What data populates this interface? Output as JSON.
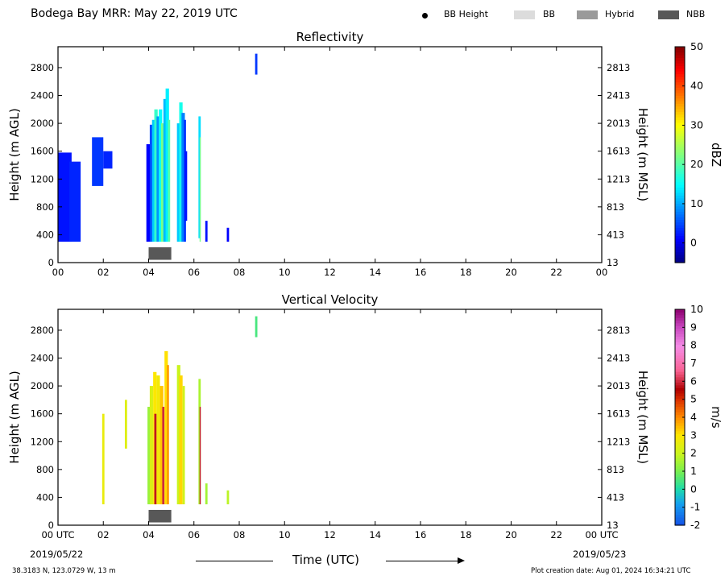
{
  "header": {
    "title": "Bodega Bay MRR:  May 22, 2019 UTC",
    "legend": [
      {
        "label": "BB Height",
        "kind": "dot",
        "color": "#000000"
      },
      {
        "label": "BB",
        "kind": "swatch",
        "color": "#dcdcdc"
      },
      {
        "label": "Hybrid",
        "kind": "swatch",
        "color": "#9a9a9a"
      },
      {
        "label": "NBB",
        "kind": "swatch",
        "color": "#585858"
      }
    ]
  },
  "footer": {
    "location": "38.3183 N, 123.0729 W, 13 m",
    "created": "Plot creation date: Aug 01, 2024 16:34:21 UTC",
    "xlabel": "Time (UTC)",
    "start_date": "2019/05/22",
    "end_date": "2019/05/23"
  },
  "chart_data": [
    {
      "type": "heatmap",
      "title": "Reflectivity",
      "xlabel": "",
      "ylabel": "Height (m AGL)",
      "ylabel_right": "Height (m MSL)",
      "x_ticks": [
        "00",
        "02",
        "04",
        "06",
        "08",
        "10",
        "12",
        "14",
        "16",
        "18",
        "20",
        "22",
        "00"
      ],
      "xlim": [
        0,
        24
      ],
      "ylim": [
        0,
        3100
      ],
      "y_ticks": [
        0,
        400,
        800,
        1200,
        1600,
        2000,
        2400,
        2800
      ],
      "y_ticks_right": [
        "13",
        "413",
        "813",
        "1213",
        "1613",
        "2013",
        "2413",
        "2813"
      ],
      "colorbar": {
        "label": "dBZ",
        "min": -5,
        "max": 50,
        "ticks": [
          0,
          10,
          20,
          30,
          40,
          50
        ]
      },
      "bands": [
        {
          "t": [
            0,
            0.6
          ],
          "h": [
            300,
            1580
          ],
          "v": 2
        },
        {
          "t": [
            0.5,
            1.0
          ],
          "h": [
            300,
            1450
          ],
          "v": 3
        },
        {
          "t": [
            1.5,
            2.0
          ],
          "h": [
            1100,
            1800
          ],
          "v": 4
        },
        {
          "t": [
            2.0,
            2.4
          ],
          "h": [
            1350,
            1600
          ],
          "v": 3
        },
        {
          "t": [
            3.9,
            4.1
          ],
          "h": [
            300,
            1700
          ],
          "v": 1
        },
        {
          "t": [
            4.05,
            4.2
          ],
          "h": [
            300,
            1980
          ],
          "v": 5
        },
        {
          "t": [
            4.15,
            4.3
          ],
          "h": [
            300,
            2050
          ],
          "v": 12
        },
        {
          "t": [
            4.25,
            4.4
          ],
          "h": [
            300,
            2200
          ],
          "v": 18
        },
        {
          "t": [
            4.35,
            4.5
          ],
          "h": [
            300,
            2100
          ],
          "v": 9
        },
        {
          "t": [
            4.45,
            4.6
          ],
          "h": [
            300,
            2200
          ],
          "v": 15
        },
        {
          "t": [
            4.55,
            4.7
          ],
          "h": [
            300,
            2000
          ],
          "v": 22
        },
        {
          "t": [
            4.65,
            4.8
          ],
          "h": [
            300,
            2350
          ],
          "v": 11
        },
        {
          "t": [
            4.75,
            4.9
          ],
          "h": [
            300,
            2500
          ],
          "v": 14
        },
        {
          "t": [
            4.85,
            4.95
          ],
          "h": [
            300,
            2050
          ],
          "v": 20
        },
        {
          "t": [
            5.25,
            5.4
          ],
          "h": [
            300,
            2000
          ],
          "v": 12
        },
        {
          "t": [
            5.35,
            5.5
          ],
          "h": [
            300,
            2300
          ],
          "v": 16
        },
        {
          "t": [
            5.45,
            5.6
          ],
          "h": [
            300,
            2150
          ],
          "v": 8
        },
        {
          "t": [
            5.55,
            5.65
          ],
          "h": [
            300,
            2050
          ],
          "v": 4
        },
        {
          "t": [
            5.6,
            5.7
          ],
          "h": [
            600,
            1600
          ],
          "v": 2
        },
        {
          "t": [
            6.2,
            6.3
          ],
          "h": [
            350,
            2100
          ],
          "v": 13
        },
        {
          "t": [
            6.25,
            6.3
          ],
          "h": [
            300,
            1800
          ],
          "v": 22
        },
        {
          "t": [
            6.5,
            6.6
          ],
          "h": [
            300,
            600
          ],
          "v": 2
        },
        {
          "t": [
            7.45,
            7.55
          ],
          "h": [
            300,
            500
          ],
          "v": 1
        },
        {
          "t": [
            8.7,
            8.8
          ],
          "h": [
            2700,
            3000
          ],
          "v": 4
        }
      ]
    },
    {
      "type": "heatmap",
      "title": "Vertical Velocity",
      "xlabel": "",
      "ylabel": "Height (m AGL)",
      "ylabel_right": "Height (m MSL)",
      "x_ticks": [
        "00 UTC",
        "02",
        "04",
        "06",
        "08",
        "10",
        "12",
        "14",
        "16",
        "18",
        "20",
        "22",
        "00 UTC"
      ],
      "xlim": [
        0,
        24
      ],
      "ylim": [
        0,
        3100
      ],
      "y_ticks": [
        0,
        400,
        800,
        1200,
        1600,
        2000,
        2400,
        2800
      ],
      "y_ticks_right": [
        "13",
        "413",
        "813",
        "1213",
        "1613",
        "2013",
        "2413",
        "2813"
      ],
      "colorbar": {
        "label": "m/s",
        "min": -2,
        "max": 10,
        "ticks": [
          -2,
          -1,
          0,
          1,
          2,
          3,
          4,
          5,
          6,
          7,
          8,
          9,
          10
        ]
      },
      "bands": [
        {
          "t": [
            1.95,
            2.05
          ],
          "h": [
            300,
            1600
          ],
          "v": 2.6
        },
        {
          "t": [
            2.95,
            3.05
          ],
          "h": [
            1100,
            1800
          ],
          "v": 2.4
        },
        {
          "t": [
            3.95,
            4.1
          ],
          "h": [
            300,
            1700
          ],
          "v": 1.4
        },
        {
          "t": [
            4.05,
            4.2
          ],
          "h": [
            300,
            2000
          ],
          "v": 2.3
        },
        {
          "t": [
            4.2,
            4.35
          ],
          "h": [
            300,
            2200
          ],
          "v": 3.0
        },
        {
          "t": [
            4.25,
            4.35
          ],
          "h": [
            300,
            1600
          ],
          "v": 5.8
        },
        {
          "t": [
            4.35,
            4.5
          ],
          "h": [
            300,
            2150
          ],
          "v": 2.8
        },
        {
          "t": [
            4.5,
            4.65
          ],
          "h": [
            300,
            2000
          ],
          "v": 3.4
        },
        {
          "t": [
            4.6,
            4.7
          ],
          "h": [
            300,
            1700
          ],
          "v": 6.0
        },
        {
          "t": [
            4.7,
            4.85
          ],
          "h": [
            300,
            2500
          ],
          "v": 3.1
        },
        {
          "t": [
            4.8,
            4.9
          ],
          "h": [
            300,
            2300
          ],
          "v": 3.8
        },
        {
          "t": [
            5.25,
            5.4
          ],
          "h": [
            300,
            2300
          ],
          "v": 2.0
        },
        {
          "t": [
            5.35,
            5.5
          ],
          "h": [
            300,
            2150
          ],
          "v": 3.2
        },
        {
          "t": [
            5.5,
            5.6
          ],
          "h": [
            300,
            2000
          ],
          "v": 2.1
        },
        {
          "t": [
            6.2,
            6.3
          ],
          "h": [
            300,
            2100
          ],
          "v": 1.6
        },
        {
          "t": [
            6.25,
            6.3
          ],
          "h": [
            300,
            1700
          ],
          "v": 5.8
        },
        {
          "t": [
            6.5,
            6.6
          ],
          "h": [
            300,
            600
          ],
          "v": 1.5
        },
        {
          "t": [
            7.45,
            7.55
          ],
          "h": [
            300,
            500
          ],
          "v": 1.8
        },
        {
          "t": [
            8.7,
            8.8
          ],
          "h": [
            2700,
            3000
          ],
          "v": 0.5
        }
      ]
    }
  ],
  "bb_markers": [
    {
      "t": [
        4.0,
        5.0
      ],
      "h": [
        40,
        220
      ],
      "kind": "NBB"
    },
    {
      "t": [
        4.0,
        5.0
      ],
      "h": [
        40,
        220
      ],
      "kind": "NBB"
    }
  ]
}
